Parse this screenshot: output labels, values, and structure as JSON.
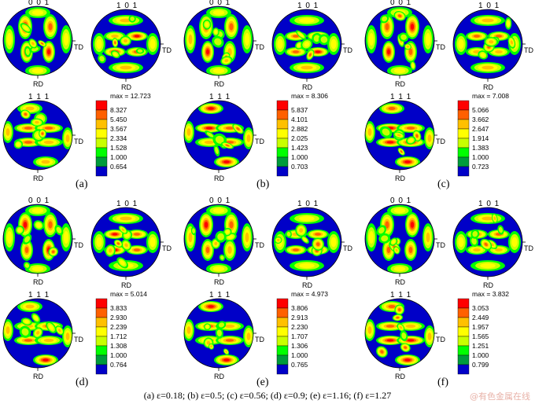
{
  "legend_colors": [
    "#0000c8",
    "#009b3c",
    "#00ff00",
    "#c8ff00",
    "#ffff00",
    "#ffc000",
    "#ff6000",
    "#ff0000"
  ],
  "axis_labels": {
    "td": "TD",
    "rd": "RD"
  },
  "panels": [
    {
      "label": "(a)",
      "poles": [
        "0 0 1",
        "1 0 1",
        "1 1 1"
      ],
      "max": "max = 12.723",
      "levels": [
        "8.327",
        "5.450",
        "3.567",
        "2.334",
        "1.528",
        "1.000",
        "0.654"
      ]
    },
    {
      "label": "(b)",
      "poles": [
        "0 0 1",
        "1 0 1",
        "1 1 1"
      ],
      "max": "max = 8.306",
      "levels": [
        "5.837",
        "4.101",
        "2.882",
        "2.025",
        "1.423",
        "1.000",
        "0.703"
      ]
    },
    {
      "label": "(c)",
      "poles": [
        "0 0 1",
        "1 0 1",
        "1 1 1"
      ],
      "max": "max = 7.008",
      "levels": [
        "5.066",
        "3.662",
        "2.647",
        "1.914",
        "1.383",
        "1.000",
        "0.723"
      ]
    },
    {
      "label": "(d)",
      "poles": [
        "0 0 1",
        "1 0 1",
        "1 1 1"
      ],
      "max": "max = 5.014",
      "levels": [
        "3.833",
        "2.930",
        "2.239",
        "1.712",
        "1.308",
        "1.000",
        "0.764"
      ]
    },
    {
      "label": "(e)",
      "poles": [
        "0 0 1",
        "1 0 1",
        "1 1 1"
      ],
      "max": "max = 4.973",
      "levels": [
        "3.806",
        "2.913",
        "2.230",
        "1.707",
        "1.306",
        "1.000",
        "0.765"
      ]
    },
    {
      "label": "(f)",
      "poles": [
        "0 0 1",
        "1 0 1",
        "1 1 1"
      ],
      "max": "max = 3.832",
      "levels": [
        "3.053",
        "2.449",
        "1.957",
        "1.565",
        "1.251",
        "1.000",
        "0.799"
      ]
    }
  ],
  "caption": "(a) ε=0.18; (b) ε=0.5; (c) ε=0.56; (d) ε=0.9; (e) ε=1.16; (f) ε=1.27",
  "watermark": "@有色金属在线"
}
